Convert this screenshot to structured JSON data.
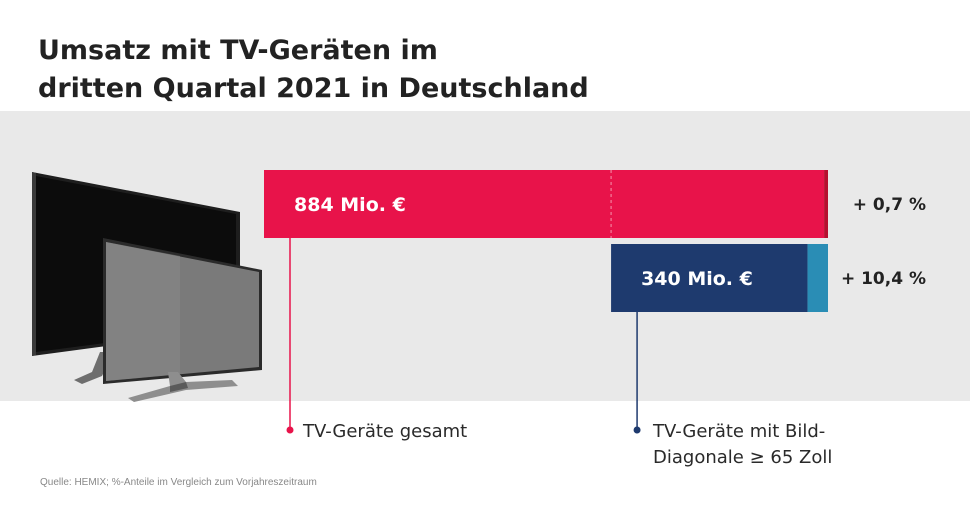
{
  "title": {
    "line1": "Umsatz mit TV-Geräten im",
    "line2": "dritten Quartal 2021 in Deutschland"
  },
  "chart_data": {
    "type": "bar",
    "title": "Umsatz mit TV-Geräten im dritten Quartal 2021 in Deutschland",
    "unit": "Mio. €",
    "series": [
      {
        "name": "TV-Geräte gesamt",
        "value": 884,
        "value_label": "884 Mio. €",
        "change": "+ 0,7 %",
        "change_pct": 0.7
      },
      {
        "name": "TV-Geräte mit Bild-Diagonale ≥ 65 Zoll",
        "value": 340,
        "value_label": "340 Mio. €",
        "change": "+ 10,4 %",
        "change_pct": 10.4
      }
    ],
    "orientation": "horizontal",
    "alignment": "right",
    "grid": false
  },
  "legend": {
    "item1": "TV-Geräte gesamt",
    "item2_line1": "TV-Geräte mit Bild-",
    "item2_line2": "Diagonale ≥ 65 Zoll"
  },
  "colors": {
    "total": "#e8134a",
    "total_change": "#b5102f",
    "large": "#1e3a6e",
    "large_change": "#2a8db5",
    "panel": "#e9e9e9"
  },
  "icons": [
    "tv-icon-large",
    "tv-icon-small"
  ],
  "source": "Quelle: HEMIX; %-Anteile im Vergleich zum Vorjahreszeitraum"
}
